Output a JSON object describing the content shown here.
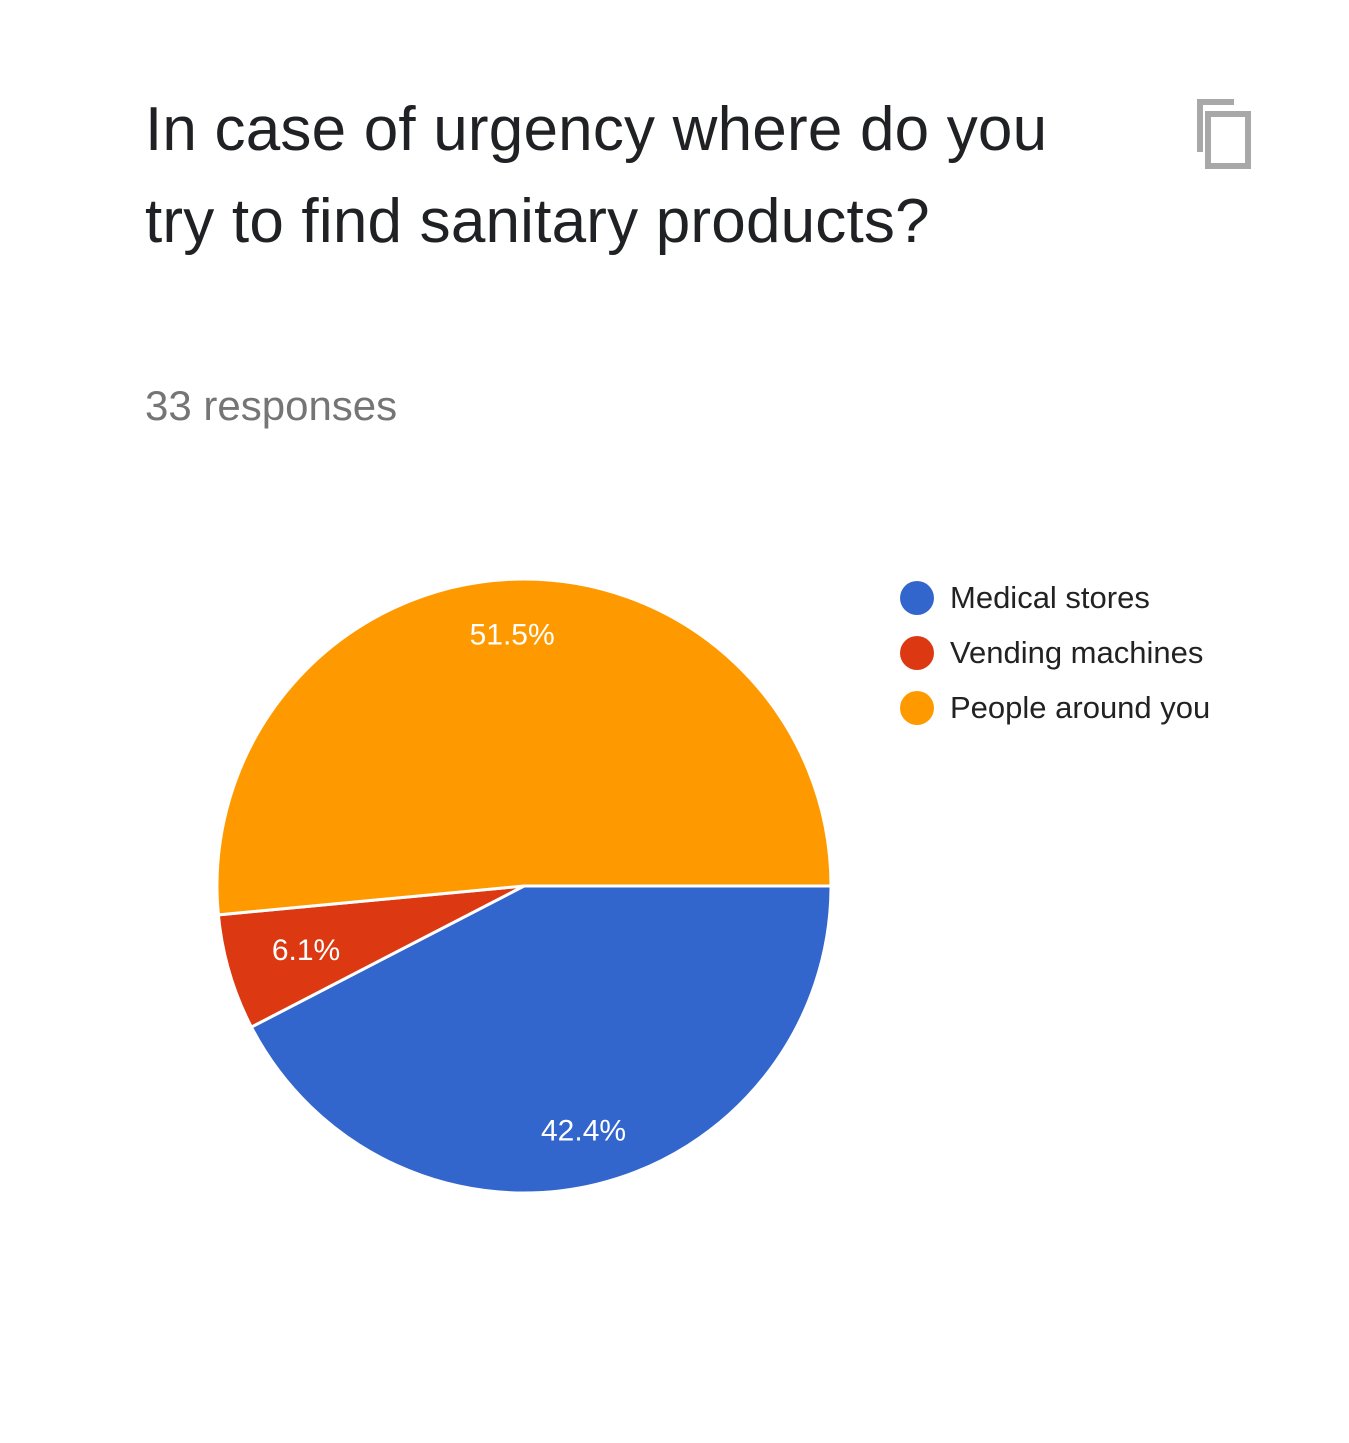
{
  "question": {
    "title": "In case of urgency where do you try to find sanitary products?",
    "responses": "33 responses"
  },
  "toolbar": {
    "copy_icon": "copy-icon"
  },
  "chart_data": {
    "type": "pie",
    "title": "In case of urgency where do you try to find sanitary products?",
    "subtitle": "33 responses",
    "legend_position": "right",
    "slices": [
      {
        "label": "Medical stores",
        "value": 42.4,
        "display": "42.4%",
        "color": "#3366cc"
      },
      {
        "label": "Vending machines",
        "value": 6.1,
        "display": "6.1%",
        "color": "#dc3912"
      },
      {
        "label": "People around you",
        "value": 51.5,
        "display": "51.5%",
        "color": "#ff9900"
      }
    ]
  }
}
